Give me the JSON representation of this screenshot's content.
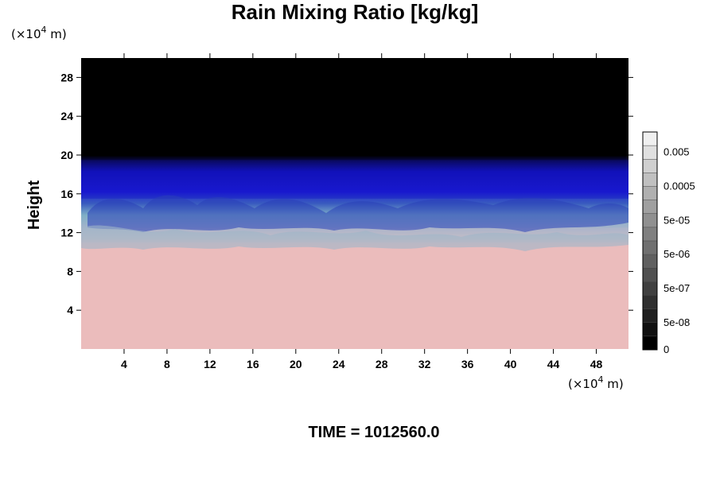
{
  "chart_data": {
    "type": "heatmap",
    "title": "Rain Mixing Ratio [kg/kg]",
    "ylabel": "Height",
    "x_unit": {
      "prefix": "(×10",
      "exp": "4",
      "suffix": " m)"
    },
    "y_unit": {
      "prefix": "(×10",
      "exp": "4",
      "suffix": " m)"
    },
    "xlim": [
      0,
      51
    ],
    "ylim": [
      0,
      30
    ],
    "x_ticks": [
      4,
      8,
      12,
      16,
      20,
      24,
      28,
      32,
      36,
      40,
      44,
      48
    ],
    "y_ticks": [
      4,
      8,
      12,
      16,
      20,
      24,
      28
    ],
    "regions": [
      {
        "name": "upper",
        "y_range": [
          19.5,
          30
        ],
        "color": "#000000"
      },
      {
        "name": "band-blue",
        "y_range": [
          15.5,
          19.5
        ],
        "color": "#1414c8"
      },
      {
        "name": "band-teal",
        "y_range": [
          12.5,
          15.5
        ],
        "color": "#7aa9c0"
      },
      {
        "name": "band-grey",
        "y_range": [
          11,
          12.5
        ],
        "color": "#b8b8c4"
      },
      {
        "name": "lower",
        "y_range": [
          0,
          11
        ],
        "color": "#ebbcbc"
      }
    ],
    "colorbar": {
      "labels": [
        "0.005",
        "0.0005",
        "5e-05",
        "5e-06",
        "5e-07",
        "5e-08",
        "0"
      ],
      "levels": 16,
      "color_top": "#f0f0f0",
      "color_bottom": "#000000"
    },
    "footer": "TIME = 1012560.0"
  }
}
